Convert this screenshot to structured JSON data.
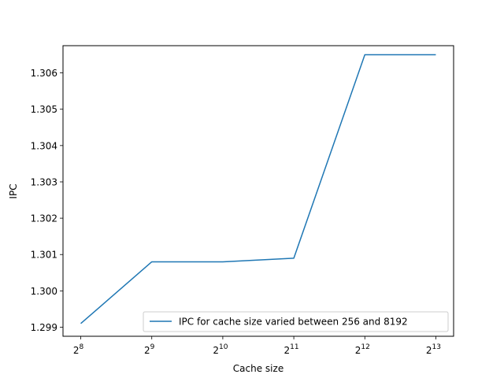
{
  "chart_data": {
    "type": "line",
    "title": "",
    "xlabel": "Cache size",
    "ylabel": "IPC",
    "x_scale": "log2",
    "x": [
      256,
      512,
      1024,
      2048,
      4096,
      8192
    ],
    "x_tick_labels": [
      {
        "base": "2",
        "exp": "8"
      },
      {
        "base": "2",
        "exp": "9"
      },
      {
        "base": "2",
        "exp": "10"
      },
      {
        "base": "2",
        "exp": "11"
      },
      {
        "base": "2",
        "exp": "12"
      },
      {
        "base": "2",
        "exp": "13"
      }
    ],
    "y_ticks": [
      "1.299",
      "1.300",
      "1.301",
      "1.302",
      "1.303",
      "1.304",
      "1.305",
      "1.306"
    ],
    "ylim": [
      1.29875,
      1.30675
    ],
    "series": [
      {
        "name": "IPC for cache size varied between 256 and 8192",
        "color": "#1f77b4",
        "values": [
          1.2991,
          1.3008,
          1.3008,
          1.3009,
          1.3065,
          1.3065
        ]
      }
    ],
    "grid": false,
    "legend_position": "lower-right"
  }
}
